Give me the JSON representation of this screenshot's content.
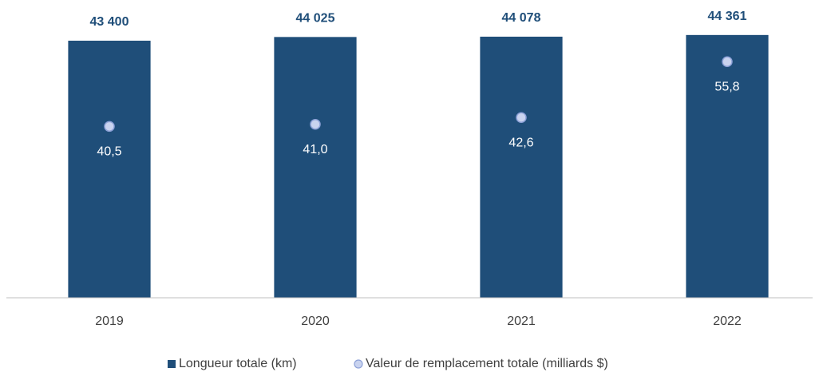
{
  "chart_data": {
    "type": "bar",
    "categories": [
      "2019",
      "2020",
      "2021",
      "2022"
    ],
    "series": [
      {
        "name": "Longueur totale (km)",
        "color": "#1f4e79",
        "values": [
          43400,
          44025,
          44078,
          44361
        ],
        "value_labels": [
          "43 400",
          "44 025",
          "44 078",
          "44 361"
        ]
      },
      {
        "name": "Valeur de remplacement totale (milliards $)",
        "color": "#c9d3ef",
        "axis": "y2",
        "values": [
          40.5,
          41.0,
          42.6,
          55.8
        ],
        "value_labels": [
          "40,5",
          "41,0",
          "42,6",
          "55,8"
        ]
      }
    ],
    "ylim": [
      0,
      50000
    ],
    "y2lim": [
      0,
      70
    ],
    "legend": "bottom"
  }
}
